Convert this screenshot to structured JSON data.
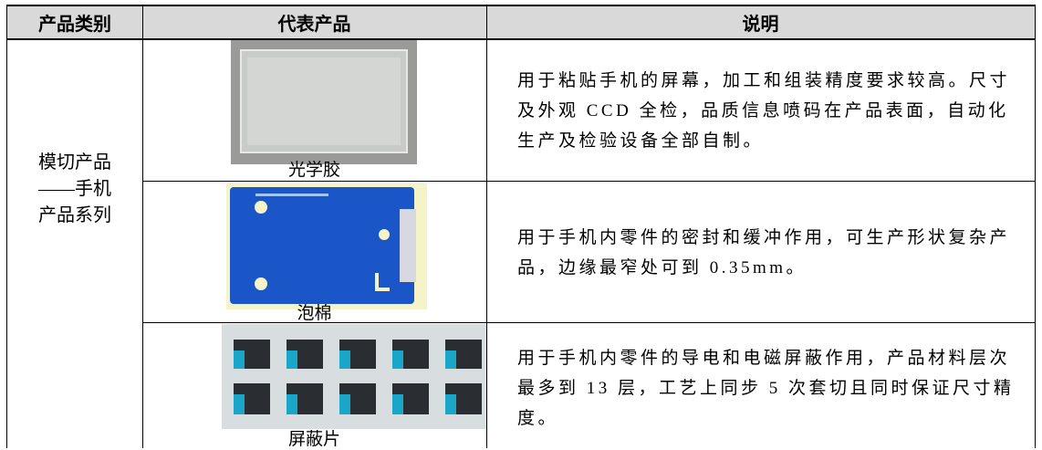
{
  "table": {
    "header": [
      "产品类别",
      "代表产品",
      "说明"
    ],
    "category_lines": [
      "模切产品",
      "——手机",
      "产品系列"
    ],
    "rows": [
      {
        "name": "光学胶",
        "description": "用于粘贴手机的屏幕，加工和组装精度要求较高。尺寸及外观 CCD 全检，品质信息喷码在产品表面，自动化生产及检验设备全部自制。"
      },
      {
        "name": "泡棉",
        "description": "用于手机内零件的密封和缓冲作用，可生产形状复杂产品，边缘最窄处可到 0.35mm。"
      },
      {
        "name": "屏蔽片",
        "description": "用于手机内零件的导电和电磁屏蔽作用，产品材料层次最多到 13 层，工艺上同步 5 次套切且同时保证尺寸精度。"
      }
    ]
  }
}
